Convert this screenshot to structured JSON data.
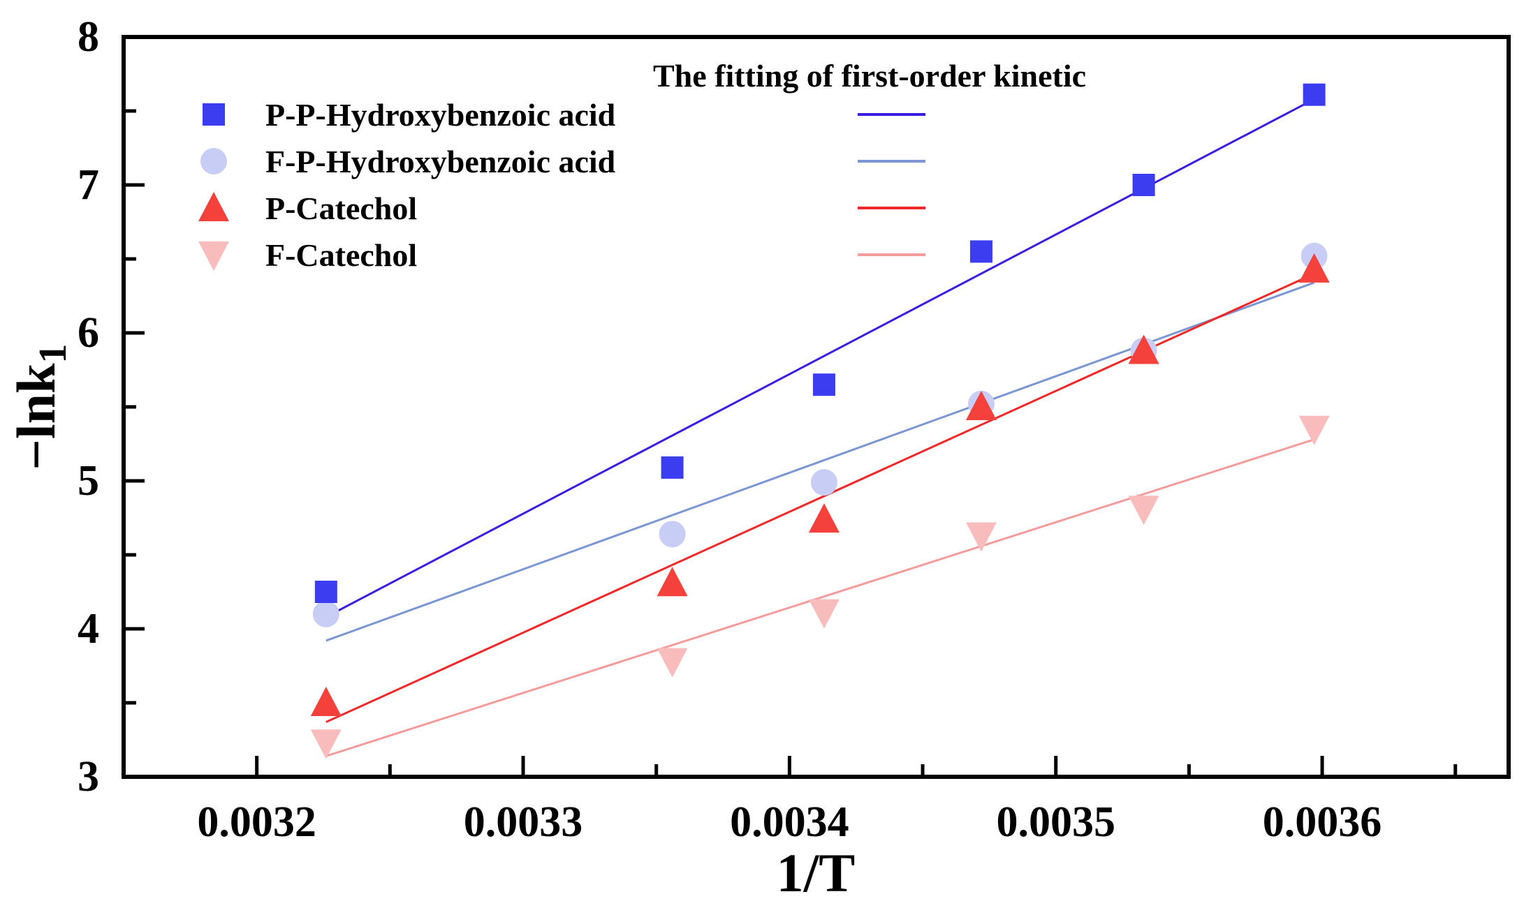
{
  "chart_data": {
    "type": "scatter",
    "title": "The fitting of first-order kinetic",
    "xlabel": "1/T",
    "ylabel": "−lnk",
    "ylabel_subscript": "1",
    "xlim": [
      0.00315,
      0.00367
    ],
    "ylim": [
      3,
      8
    ],
    "x_tick_labels": [
      "0.0032",
      "0.0033",
      "0.0034",
      "0.0035",
      "0.0036"
    ],
    "y_tick_labels": [
      "3",
      "4",
      "5",
      "6",
      "7",
      "8"
    ],
    "legend_position": "top-left",
    "series": [
      {
        "name": "P-P-Hydroxybenzoic acid",
        "marker": "square",
        "color": "#3c3cf0",
        "line_color": "#3a1de0",
        "x": [
          0.003226,
          0.003356,
          0.003413,
          0.003472,
          0.003533,
          0.003597
        ],
        "y": [
          4.25,
          5.09,
          5.65,
          6.55,
          7.0,
          7.61
        ],
        "fit": {
          "x": [
            0.003226,
            0.003597
          ],
          "y": [
            4.08,
            7.58
          ]
        }
      },
      {
        "name": "F-P-Hydroxybenzoic acid",
        "marker": "circle",
        "color": "#c8cdf5",
        "line_color": "#7b96d2",
        "x": [
          0.003226,
          0.003356,
          0.003413,
          0.003472,
          0.003533,
          0.003597
        ],
        "y": [
          4.1,
          4.64,
          4.99,
          5.52,
          5.88,
          6.52
        ],
        "fit": {
          "x": [
            0.003226,
            0.003597
          ],
          "y": [
            3.92,
            6.34
          ]
        }
      },
      {
        "name": "P-Catechol",
        "marker": "triangle-up",
        "color": "#f5413c",
        "line_color": "#ee2828",
        "x": [
          0.003226,
          0.003356,
          0.003413,
          0.003472,
          0.003533,
          0.003597
        ],
        "y": [
          3.5,
          4.31,
          4.74,
          5.5,
          5.88,
          6.43
        ],
        "fit": {
          "x": [
            0.003226,
            0.003597
          ],
          "y": [
            3.37,
            6.4
          ]
        }
      },
      {
        "name": "F-Catechol",
        "marker": "triangle-down",
        "color": "#f9bcbc",
        "line_color": "#f49c9c",
        "x": [
          0.003226,
          0.003356,
          0.003413,
          0.003472,
          0.003533,
          0.003597
        ],
        "y": [
          3.23,
          3.78,
          4.11,
          4.63,
          4.81,
          5.35
        ],
        "fit": {
          "x": [
            0.003226,
            0.003597
          ],
          "y": [
            3.14,
            5.28
          ]
        }
      }
    ]
  }
}
